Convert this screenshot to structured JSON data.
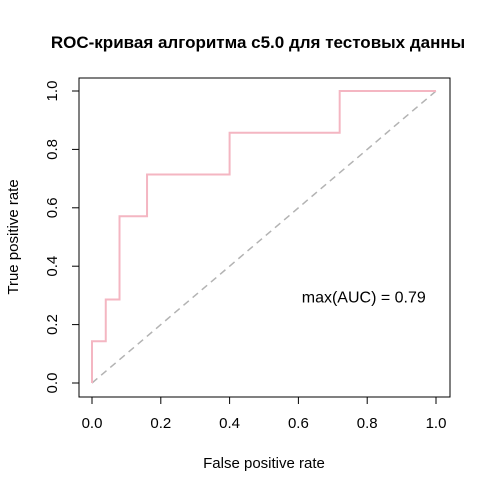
{
  "chart_data": {
    "type": "line",
    "title": "ROC-кривая алгоритма c5.0 для тестовых данны",
    "xlabel": "False positive rate",
    "ylabel": "True positive rate",
    "xlim": [
      0,
      1
    ],
    "ylim": [
      0,
      1
    ],
    "x_ticks": [
      "0.0",
      "0.2",
      "0.4",
      "0.6",
      "0.8",
      "1.0"
    ],
    "y_ticks": [
      "0.0",
      "0.2",
      "0.4",
      "0.6",
      "0.8",
      "1.0"
    ],
    "grid": false,
    "legend": "none",
    "series": [
      {
        "color": "#f4b6c2",
        "style": "step",
        "x": [
          0.0,
          0.0,
          0.04,
          0.04,
          0.08,
          0.08,
          0.16,
          0.16,
          0.4,
          0.4,
          0.72,
          0.72,
          1.0
        ],
        "y": [
          0.0,
          0.143,
          0.143,
          0.286,
          0.286,
          0.571,
          0.571,
          0.714,
          0.714,
          0.857,
          0.857,
          1.0,
          1.0
        ]
      }
    ],
    "reference_line": {
      "x": [
        0,
        1
      ],
      "y": [
        0,
        1
      ],
      "color": "#b3b3b3",
      "style": "dashed"
    },
    "annotations": [
      {
        "text": "max(AUC) = 0.79",
        "x": 0.79,
        "y": 0.29
      }
    ]
  }
}
